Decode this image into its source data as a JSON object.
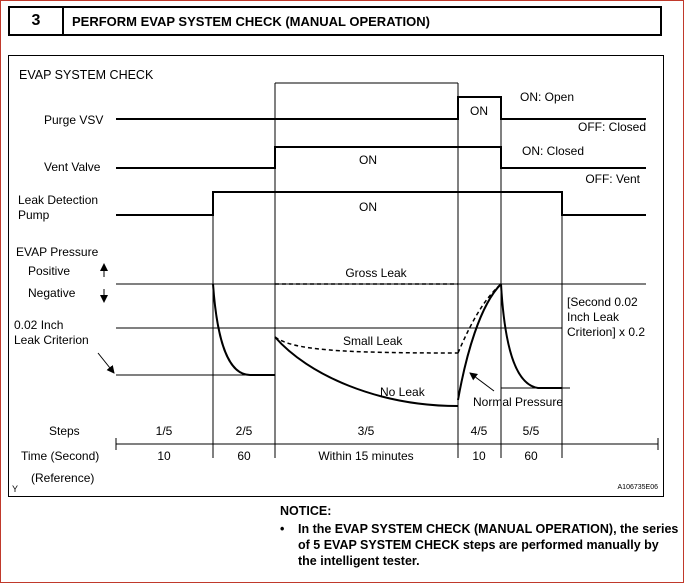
{
  "header": {
    "step_number": "3",
    "title": "PERFORM EVAP SYSTEM CHECK (MANUAL OPERATION)"
  },
  "diagram": {
    "title": "EVAP SYSTEM CHECK",
    "signals": {
      "purge_vsv": "Purge VSV",
      "vent_valve": "Vent Valve",
      "leak_pump_line1": "Leak Detection",
      "leak_pump_line2": "Pump",
      "evap_pressure": "EVAP Pressure",
      "positive": "Positive",
      "negative": "Negative",
      "criterion_line1": "0.02 Inch",
      "criterion_line2": "Leak Criterion"
    },
    "states": {
      "purge_on": "ON",
      "purge_on_desc": "ON: Open",
      "purge_off_desc": "OFF: Closed",
      "vent_on": "ON",
      "vent_on_desc": "ON: Closed",
      "vent_off_desc": "OFF: Vent",
      "pump_on": "ON"
    },
    "curves": {
      "gross_leak": "Gross Leak",
      "small_leak": "Small Leak",
      "no_leak": "No Leak",
      "normal_pressure": "Normal Pressure",
      "second_criterion_line1": "[Second 0.02",
      "second_criterion_line2": "Inch Leak",
      "second_criterion_line3": "Criterion] x 0.2"
    },
    "steps_label": "Steps",
    "time_label": "Time (Second)",
    "reference_label": "(Reference)",
    "steps": [
      "1/5",
      "2/5",
      "3/5",
      "4/5",
      "5/5"
    ],
    "times": [
      "10",
      "60",
      "Within 15 minutes",
      "10",
      "60"
    ],
    "corner_mark": "Y",
    "figure_code": "A106735E06"
  },
  "notice": {
    "title": "NOTICE:",
    "bullet": "•",
    "text": "In the EVAP SYSTEM CHECK (MANUAL OPERATION), the series of 5 EVAP SYSTEM CHECK steps are performed manually by the intelligent tester."
  }
}
